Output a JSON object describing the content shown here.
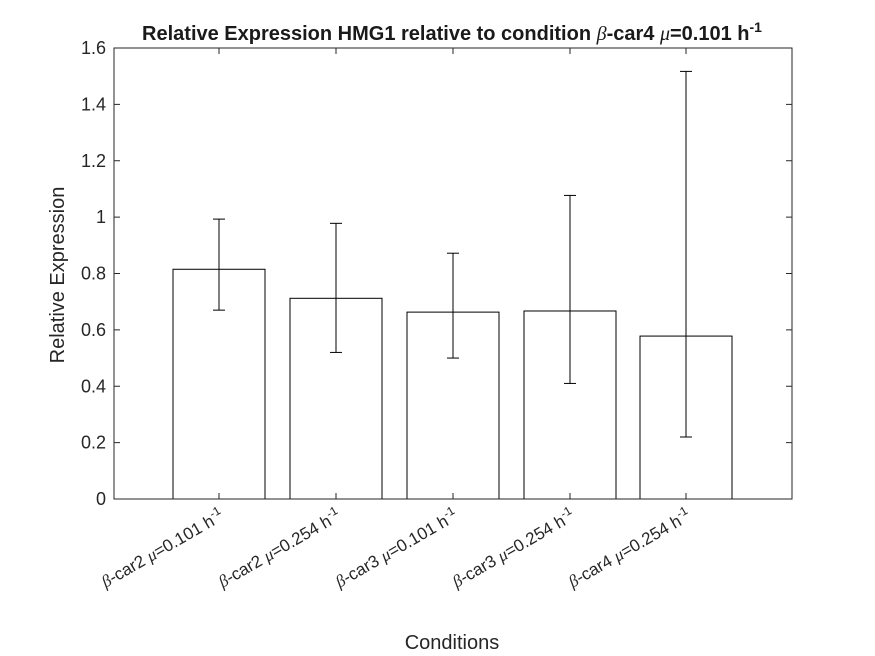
{
  "chart_data": {
    "type": "bar",
    "title": {
      "text_before": "Relative Expression HMG1 relative to condition ",
      "beta": "β",
      "text_mid": "-car4 ",
      "mu": "μ",
      "text_after": "=0.101 h",
      "superscript": "-1"
    },
    "xlabel": "Conditions",
    "ylabel": "Relative Expression",
    "ylim": [
      0,
      1.6
    ],
    "yticks": [
      {
        "value": 0,
        "label": "0"
      },
      {
        "value": 0.2,
        "label": "0.2"
      },
      {
        "value": 0.4,
        "label": "0.4"
      },
      {
        "value": 0.6,
        "label": "0.6"
      },
      {
        "value": 0.8,
        "label": "0.8"
      },
      {
        "value": 1.0,
        "label": "1"
      },
      {
        "value": 1.2,
        "label": "1.2"
      },
      {
        "value": 1.4,
        "label": "1.4"
      },
      {
        "value": 1.6,
        "label": "1.6"
      }
    ],
    "categories": [
      {
        "beta": "β",
        "strain": "-car2 ",
        "mu": "μ",
        "rate": "=0.101 h",
        "sup": "-1"
      },
      {
        "beta": "β",
        "strain": "-car2 ",
        "mu": "μ",
        "rate": "=0.254 h",
        "sup": "-1"
      },
      {
        "beta": "β",
        "strain": "-car3 ",
        "mu": "μ",
        "rate": "=0.101 h",
        "sup": "-1"
      },
      {
        "beta": "β",
        "strain": "-car3 ",
        "mu": "μ",
        "rate": "=0.254 h",
        "sup": "-1"
      },
      {
        "beta": "β",
        "strain": "-car4 ",
        "mu": "μ",
        "rate": "=0.254 h",
        "sup": "-1"
      }
    ],
    "values": [
      0.815,
      0.712,
      0.663,
      0.667,
      0.578
    ],
    "error_lower": [
      0.67,
      0.52,
      0.5,
      0.41,
      0.22
    ],
    "error_upper": [
      0.993,
      0.978,
      0.872,
      1.077,
      1.517
    ],
    "grid": false,
    "colors": {
      "bar_fill": "#ffffff",
      "bar_edge": "#000000",
      "axis": "#262626",
      "errorbar": "#000000"
    }
  }
}
